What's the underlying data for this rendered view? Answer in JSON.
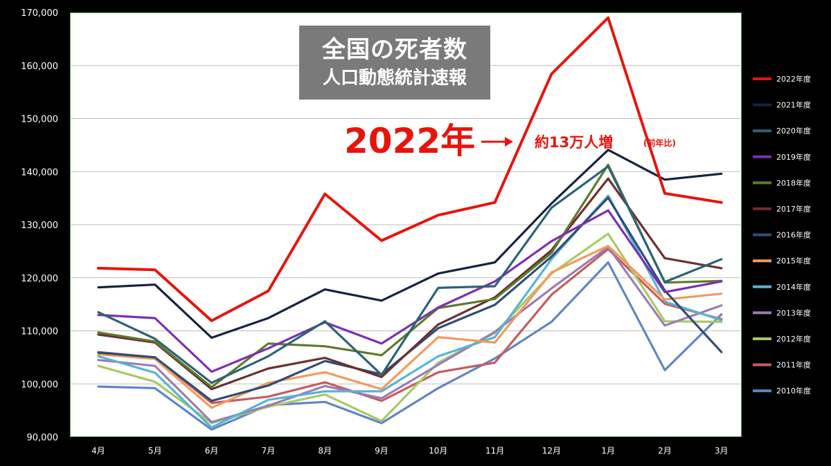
{
  "title": "全国の死者数",
  "subtitle": "人口動態統計速報",
  "highlight_year": "2022年",
  "annotation": "約13万人増",
  "annotation_note": "(前年比)",
  "chart_data": {
    "type": "line",
    "categories": [
      "4月",
      "5月",
      "6月",
      "7月",
      "8月",
      "9月",
      "10月",
      "11月",
      "12月",
      "1月",
      "2月",
      "3月"
    ],
    "ylim": [
      90000,
      170000
    ],
    "yticks": [
      "90,000",
      "100,000",
      "110,000",
      "120,000",
      "130,000",
      "140,000",
      "150,000",
      "160,000",
      "170,000"
    ],
    "grid": true,
    "legend_position": "right",
    "series": [
      {
        "name": "2022年度",
        "color": "#e8140c",
        "values": [
          121800,
          121500,
          111900,
          117500,
          135800,
          127000,
          131800,
          134200,
          158400,
          169000,
          135900,
          134200
        ]
      },
      {
        "name": "2021年度",
        "color": "#15223f",
        "values": [
          118200,
          118700,
          108700,
          112400,
          117800,
          115700,
          120800,
          122900,
          134000,
          144100,
          138500,
          139600
        ]
      },
      {
        "name": "2020年度",
        "color": "#2b6474",
        "values": [
          113500,
          108500,
          100200,
          105200,
          111800,
          101700,
          118100,
          118400,
          133200,
          141000,
          119200,
          123500
        ]
      },
      {
        "name": "2019年度",
        "color": "#7b2fb5",
        "values": [
          113000,
          112400,
          102300,
          106700,
          111600,
          107600,
          114400,
          119300,
          126900,
          132700,
          117300,
          119300
        ]
      },
      {
        "name": "2018年度",
        "color": "#5e7a2a",
        "values": [
          109700,
          108000,
          99400,
          107600,
          107100,
          105400,
          114300,
          116000,
          124700,
          141300,
          119100,
          119400
        ]
      },
      {
        "name": "2017年度",
        "color": "#6e2e2e",
        "values": [
          109300,
          107800,
          99000,
          102900,
          104900,
          101300,
          111200,
          116300,
          125200,
          138700,
          123700,
          121800
        ]
      },
      {
        "name": "2016年度",
        "color": "#2f4d76",
        "values": [
          105900,
          105000,
          96800,
          99700,
          104300,
          101800,
          110500,
          114900,
          124000,
          135100,
          117600,
          106000
        ]
      },
      {
        "name": "2015年度",
        "color": "#f39a5a",
        "values": [
          105600,
          104700,
          95500,
          100200,
          102200,
          99000,
          108800,
          107800,
          121000,
          126000,
          115900,
          117000
        ]
      },
      {
        "name": "2014年度",
        "color": "#56b4d6",
        "values": [
          105200,
          102100,
          91800,
          97000,
          98600,
          98600,
          105200,
          108800,
          123500,
          135500,
          115500,
          112000
        ]
      },
      {
        "name": "2013年度",
        "color": "#9b7cb5",
        "values": [
          104500,
          103400,
          92800,
          95900,
          99600,
          97300,
          103600,
          109800,
          118000,
          125800,
          111000,
          114800
        ]
      },
      {
        "name": "2012年度",
        "color": "#a8c964",
        "values": [
          103400,
          100400,
          92600,
          95700,
          98000,
          93000,
          104000,
          109600,
          120800,
          128300,
          111800,
          111700
        ]
      },
      {
        "name": "2011年度",
        "color": "#c65c5c",
        "values": [
          106000,
          105000,
          96400,
          97600,
          100300,
          96800,
          102200,
          104000,
          116800,
          125400,
          115100,
          112200
        ]
      },
      {
        "name": "2010年度",
        "color": "#5f86c4",
        "values": [
          99500,
          99200,
          91400,
          96000,
          96600,
          92600,
          99200,
          104800,
          111700,
          122900,
          102600,
          113100
        ]
      }
    ]
  }
}
